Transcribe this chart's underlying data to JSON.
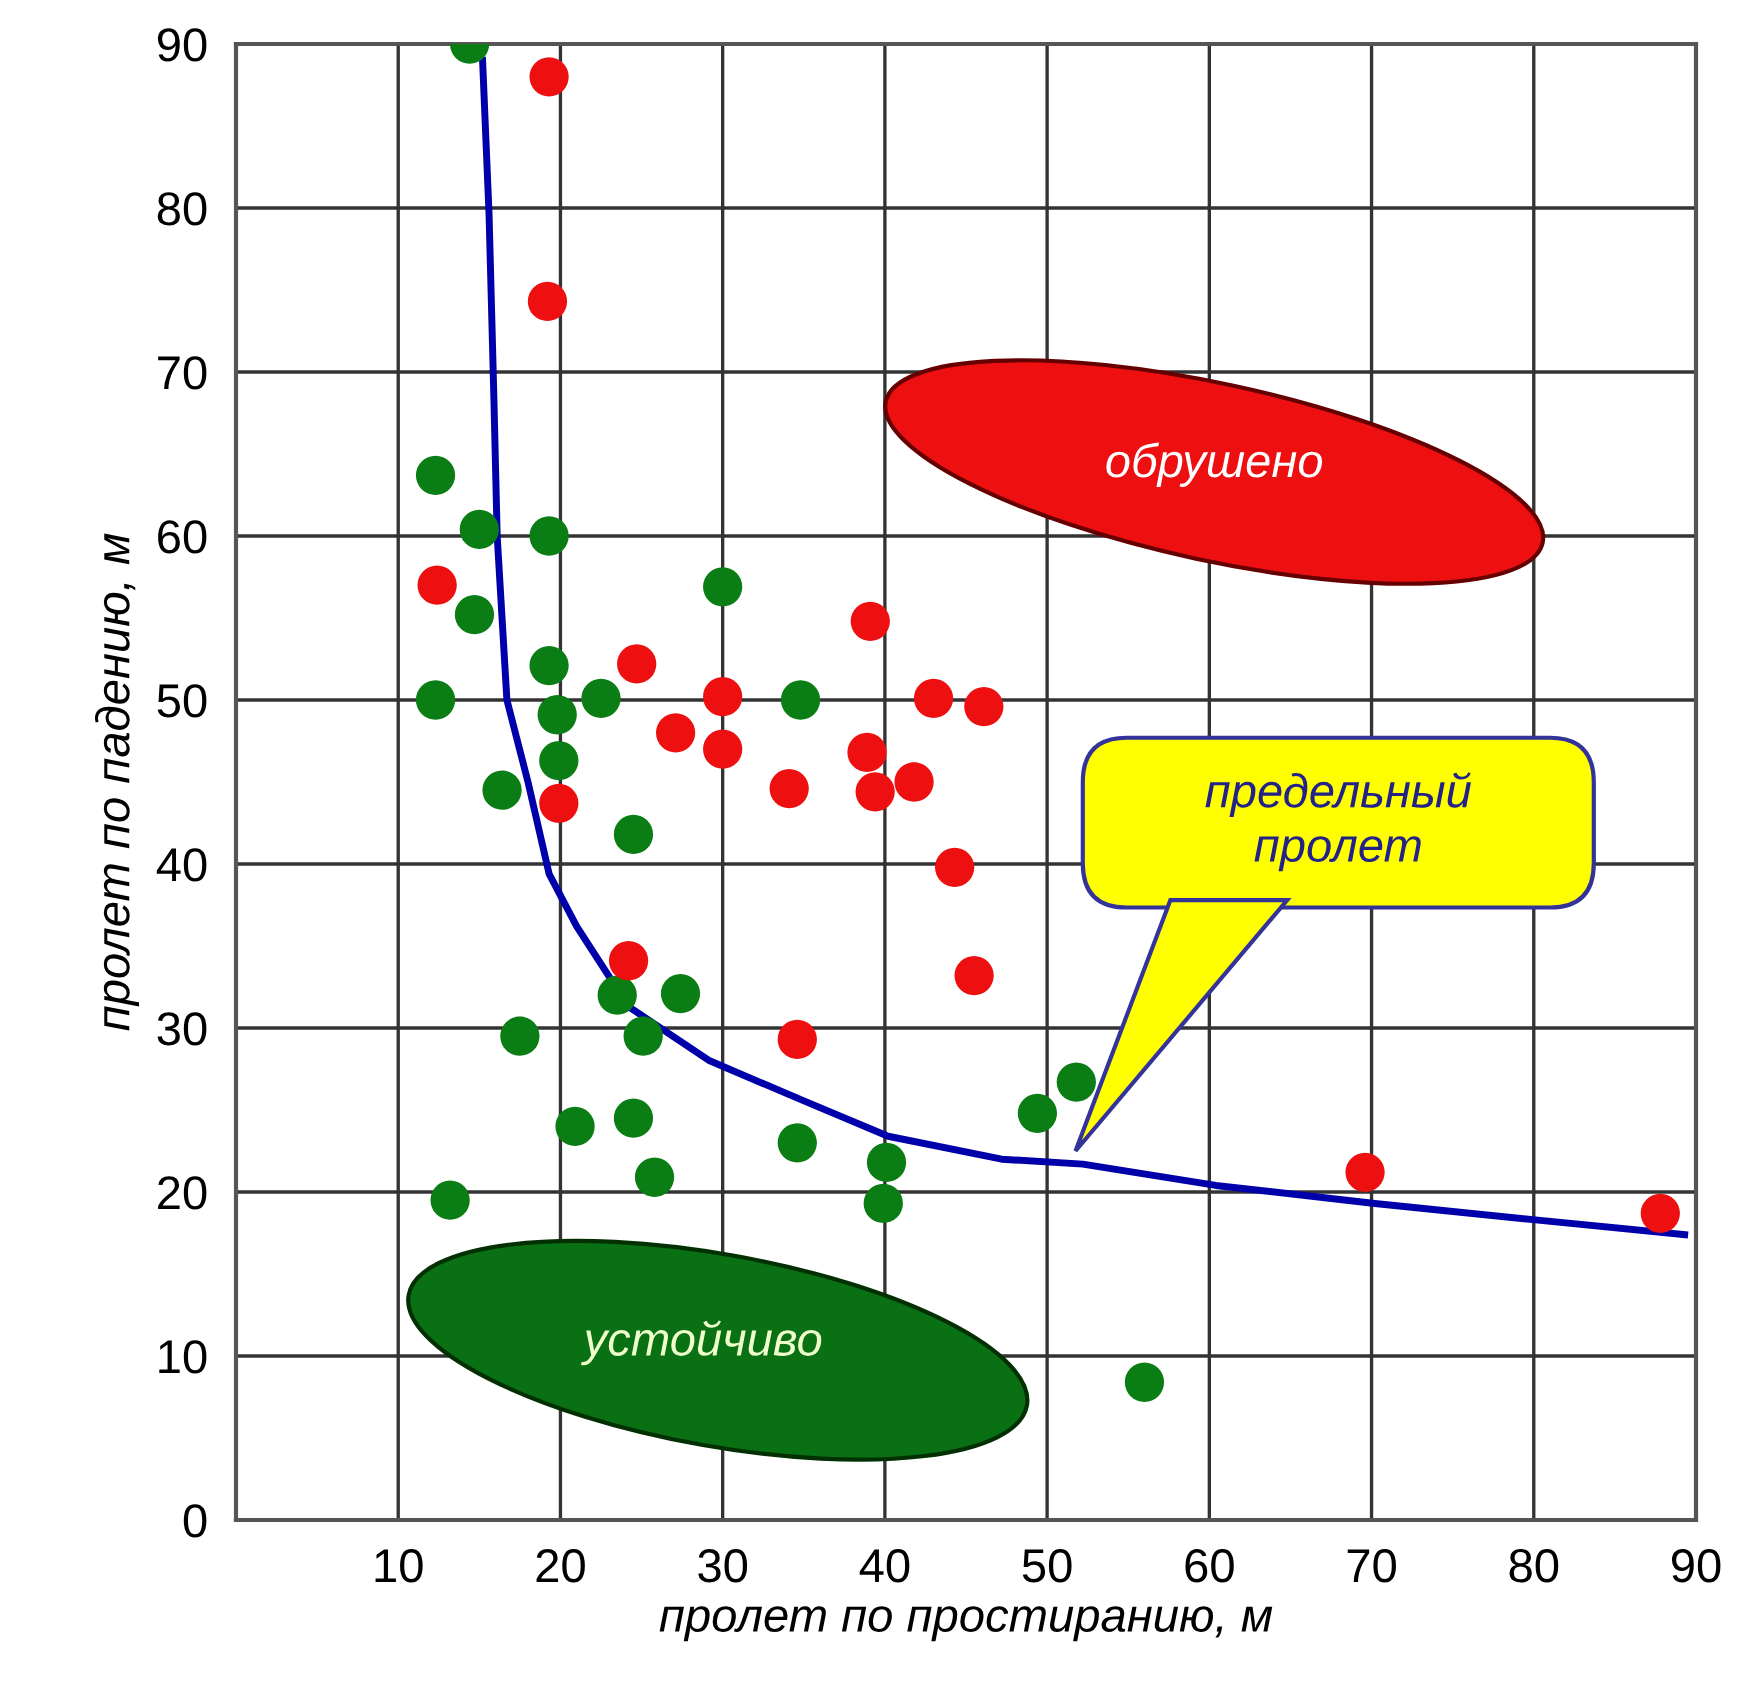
{
  "chart_data": {
    "type": "scatter",
    "xlabel": "пролет по простиранию, м",
    "ylabel": "пролет по падению, м",
    "xlim": [
      0,
      90
    ],
    "ylim": [
      0,
      90
    ],
    "xticks": [
      10,
      20,
      30,
      40,
      50,
      60,
      70,
      80,
      90
    ],
    "yticks": [
      0,
      10,
      20,
      30,
      40,
      50,
      60,
      70,
      80,
      90
    ],
    "grid": true,
    "marker": "circle",
    "series": [
      {
        "color": "#0a7d14",
        "x": [
          14.4,
          12.3,
          15.0,
          19.3,
          14.7,
          19.3,
          12.3,
          22.5,
          19.8,
          34.8,
          30.0,
          16.4,
          19.9,
          24.5,
          23.5,
          27.4,
          25.1,
          17.5,
          20.9,
          24.5,
          34.6,
          25.8,
          40.1,
          39.9,
          13.2,
          49.4,
          51.8,
          56.0
        ],
        "values": [
          90,
          63.7,
          60.4,
          60.0,
          55.2,
          52.1,
          50.0,
          50.1,
          49.1,
          50.0,
          56.9,
          44.5,
          46.3,
          41.8,
          32.0,
          32.1,
          29.5,
          29.5,
          24.0,
          24.5,
          23.0,
          20.9,
          21.8,
          19.3,
          19.5,
          24.8,
          26.7,
          8.4
        ]
      },
      {
        "color": "#ee1010",
        "x": [
          19.3,
          19.2,
          12.4,
          24.7,
          30.0,
          27.1,
          30.0,
          39.1,
          43.0,
          46.1,
          38.9,
          39.4,
          41.8,
          34.1,
          44.3,
          45.5,
          19.9,
          24.2,
          34.6,
          69.6,
          87.8
        ],
        "values": [
          88.0,
          74.3,
          57.0,
          52.2,
          50.2,
          48.0,
          47.0,
          54.8,
          50.1,
          49.6,
          46.8,
          44.4,
          45.0,
          44.6,
          39.8,
          33.2,
          43.7,
          34.1,
          29.3,
          21.2,
          18.7
        ]
      },
      {
        "type": "line",
        "color": "#0000aa",
        "marker": "none",
        "line_style": "solid",
        "x": [
          15.2,
          15.6,
          15.9,
          16.1,
          16.7,
          18.0,
          19.3,
          21.0,
          24.2,
          29.2,
          34.9,
          40.2,
          47.2,
          52.2,
          60.4,
          70.2,
          80.1,
          89.3
        ],
        "values": [
          89,
          79.6,
          68.3,
          60.0,
          50.0,
          45.0,
          39.4,
          36.2,
          31.3,
          28.0,
          25.6,
          23.4,
          22.0,
          21.7,
          20.4,
          19.3,
          18.3,
          17.4
        ]
      }
    ],
    "annotations": [
      "обрушено",
      "устойчиво",
      "предельный\nпролет"
    ]
  }
}
